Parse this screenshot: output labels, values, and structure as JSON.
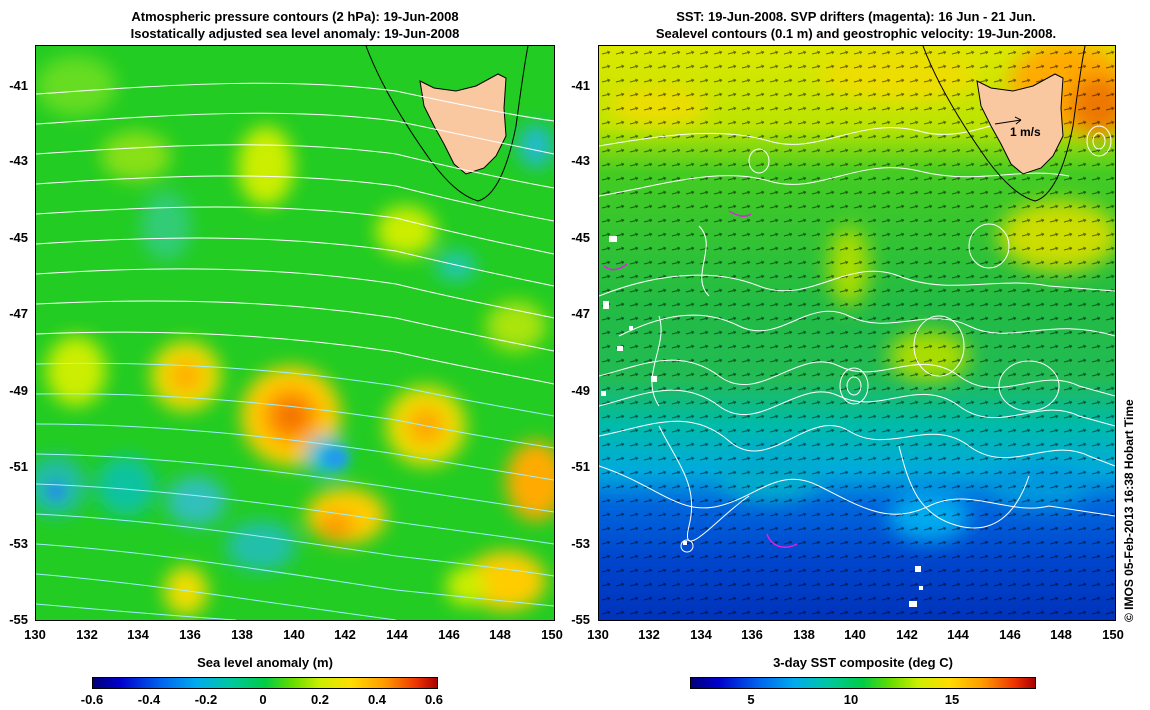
{
  "left_panel": {
    "title_line1": "Atmospheric pressure contours (2 hPa): 19-Jun-2008",
    "title_line2": "Isostatically adjusted sea level anomaly: 19-Jun-2008",
    "colorbar": {
      "label": "Sea level anomaly (m)",
      "ticks": [
        "-0.6",
        "-0.4",
        "-0.2",
        "0",
        "0.2",
        "0.4",
        "0.6"
      ],
      "range": [
        -0.6,
        0.6
      ]
    }
  },
  "right_panel": {
    "title_line1": "SST: 19-Jun-2008. SVP drifters (magenta): 16 Jun - 21 Jun.",
    "title_line2": "Sealevel contours (0.1 m) and geostrophic velocity: 19-Jun-2008.",
    "scale_arrow_label": "1 m/s",
    "colorbar": {
      "label": "3-day SST composite (deg C)",
      "ticks": [
        "5",
        "10",
        "15"
      ],
      "range": [
        1,
        19
      ]
    }
  },
  "axes": {
    "lat_ticks": [
      "-41",
      "-43",
      "-45",
      "-47",
      "-49",
      "-51",
      "-53",
      "-55"
    ],
    "lon_ticks": [
      "130",
      "132",
      "134",
      "136",
      "138",
      "140",
      "142",
      "144",
      "146",
      "148",
      "150"
    ],
    "lat_range": [
      -55,
      -39.8
    ],
    "lon_range": [
      130,
      150
    ]
  },
  "credit": "© IMOS 05-Feb-2013 16:38 Hobart Time",
  "colors": {
    "land": "#f9c8a0",
    "drifter": "#e020e0",
    "contour": "#ffffff",
    "pressure_contour": "#9ff0ff"
  }
}
